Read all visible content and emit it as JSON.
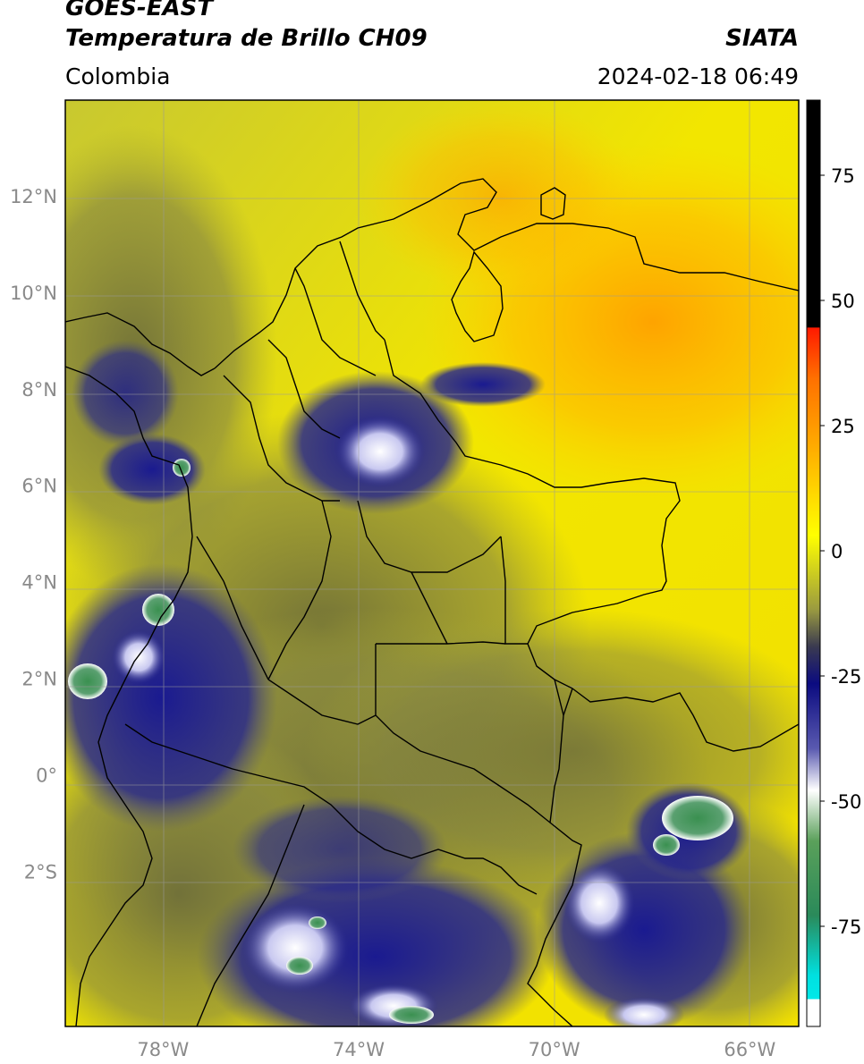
{
  "header": {
    "satellite": "GOES-EAST",
    "product": "Temperatura de Brillo CH09",
    "organization": "SIATA",
    "region": "Colombia",
    "timestamp": "2024-02-18 06:49"
  },
  "map": {
    "lon_range": [
      -80,
      -65
    ],
    "lat_range": [
      -5.2,
      14
    ],
    "lat_ticks": [
      {
        "value": 12,
        "label": "12°N"
      },
      {
        "value": 10,
        "label": "10°N"
      },
      {
        "value": 8,
        "label": "8°N"
      },
      {
        "value": 6,
        "label": "6°N"
      },
      {
        "value": 4,
        "label": "4°N"
      },
      {
        "value": 2,
        "label": "2°N"
      },
      {
        "value": 0,
        "label": "0°"
      },
      {
        "value": -2,
        "label": "2°S"
      }
    ],
    "lon_ticks": [
      {
        "value": -78,
        "label": "78°W"
      },
      {
        "value": -74,
        "label": "74°W"
      },
      {
        "value": -70,
        "label": "70°W"
      },
      {
        "value": -66,
        "label": "66°W"
      }
    ]
  },
  "colorbar": {
    "range": [
      -95,
      90
    ],
    "ticks": [
      {
        "value": 75,
        "label": "75"
      },
      {
        "value": 50,
        "label": "50"
      },
      {
        "value": 25,
        "label": "25"
      },
      {
        "value": 0,
        "label": "0"
      },
      {
        "value": -25,
        "label": "-25"
      },
      {
        "value": -50,
        "label": "-50"
      },
      {
        "value": -75,
        "label": "-75"
      }
    ],
    "colors": {
      "black": "#000000",
      "red": "#ff1a00",
      "orange": "#ffa500",
      "yellow": "#ffff00",
      "olive": "#8a8a3a",
      "navy": "#0b0b80",
      "white": "#ffffff",
      "green": "#3a8a3a",
      "cyan": "#00e0e0"
    }
  }
}
